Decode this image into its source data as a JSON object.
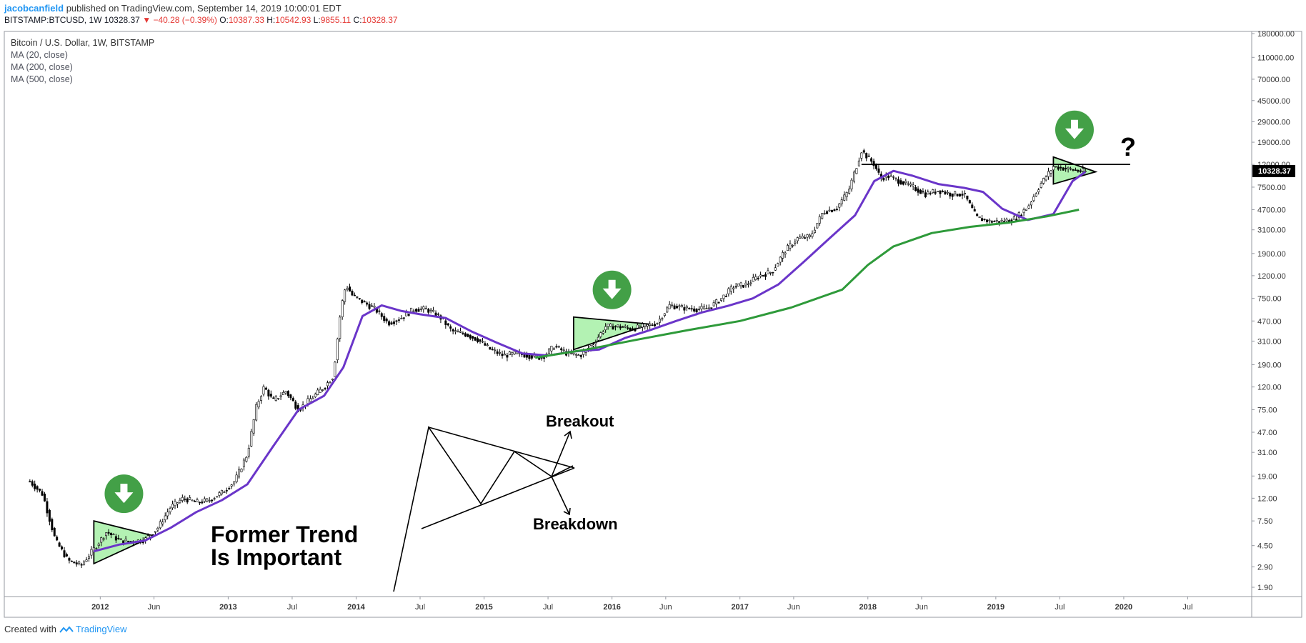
{
  "header": {
    "author": "jacobcanfield",
    "published_text": "published on TradingView.com, September 14, 2019 10:00:01 EDT",
    "symbol": "BITSTAMP:BTCUSD, 1W",
    "last": "10328.37",
    "change_arrow": "▼",
    "change": "−40.28 (−0.39%)",
    "o_label": "O:",
    "o": "10387.33",
    "h_label": "H:",
    "h": "10542.93",
    "l_label": "L:",
    "l": "9855.11",
    "c_label": "C:",
    "c": "10328.37"
  },
  "legend": {
    "title": "Bitcoin / U.S. Dollar, 1W, BITSTAMP",
    "ma1": "MA (20, close)",
    "ma2": "MA (200, close)",
    "ma3": "MA (500, close)"
  },
  "footer": {
    "created_with": "Created with",
    "brand": "TradingView"
  },
  "annotations": {
    "trend_line1": "Former Trend",
    "trend_line2": "Is Important",
    "breakout": "Breakout",
    "breakdown": "Breakdown",
    "question": "?"
  },
  "colors": {
    "ma20": "#6a35c9",
    "ma200": "#2e9a3a",
    "triangle_fill": "#a6f0a6",
    "arrow_circle": "#43a047",
    "price_label_bg": "#000000",
    "down": "#e53935",
    "brand": "#2196f3"
  },
  "chart_data": {
    "type": "line",
    "title": "Bitcoin / U.S. Dollar, 1W, BITSTAMP",
    "scale": "log",
    "y_ticks": [
      "180000.00",
      "110000.00",
      "70000.00",
      "45000.00",
      "29000.00",
      "19000.00",
      "12000.00",
      "7500.00",
      "4700.00",
      "3100.00",
      "1900.00",
      "1200.00",
      "750.00",
      "470.00",
      "310.00",
      "190.00",
      "120.00",
      "75.00",
      "47.00",
      "31.00",
      "19.00",
      "12.00",
      "7.50",
      "4.50",
      "2.90",
      "1.90"
    ],
    "x_ticks": [
      "2012",
      "Jun",
      "2013",
      "Jul",
      "2014",
      "Jul",
      "2015",
      "Jul",
      "2016",
      "Jun",
      "2017",
      "Jun",
      "2018",
      "Jun",
      "2019",
      "Jul",
      "2020",
      "Jul"
    ],
    "x_tick_dates": [
      2012.0,
      2012.42,
      2013.0,
      2013.5,
      2014.0,
      2014.5,
      2015.0,
      2015.5,
      2016.0,
      2016.42,
      2017.0,
      2017.42,
      2018.0,
      2018.42,
      2019.0,
      2019.5,
      2020.0,
      2020.5
    ],
    "last_price_label": "10328.37",
    "last_price": 10328.37,
    "resistance_level": 12000,
    "series": [
      {
        "name": "BTCUSD",
        "x": [
          2011.45,
          2011.55,
          2011.65,
          2011.75,
          2011.85,
          2011.95,
          2012.05,
          2012.15,
          2012.25,
          2012.35,
          2012.45,
          2012.55,
          2012.65,
          2012.75,
          2012.85,
          2012.95,
          2013.05,
          2013.15,
          2013.22,
          2013.28,
          2013.35,
          2013.45,
          2013.55,
          2013.65,
          2013.75,
          2013.82,
          2013.88,
          2013.92,
          2013.97,
          2014.05,
          2014.15,
          2014.25,
          2014.35,
          2014.45,
          2014.55,
          2014.65,
          2014.75,
          2014.85,
          2014.95,
          2015.05,
          2015.15,
          2015.25,
          2015.35,
          2015.45,
          2015.55,
          2015.65,
          2015.75,
          2015.85,
          2015.95,
          2016.05,
          2016.15,
          2016.25,
          2016.35,
          2016.45,
          2016.55,
          2016.65,
          2016.75,
          2016.85,
          2016.95,
          2017.05,
          2017.15,
          2017.25,
          2017.35,
          2017.45,
          2017.55,
          2017.65,
          2017.75,
          2017.85,
          2017.95,
          2018.05,
          2018.1,
          2018.15,
          2018.25,
          2018.35,
          2018.45,
          2018.55,
          2018.65,
          2018.75,
          2018.85,
          2018.95,
          2019.05,
          2019.15,
          2019.25,
          2019.35,
          2019.45,
          2019.55,
          2019.65,
          2019.7
        ],
        "values": [
          17,
          13,
          5,
          3.3,
          3.0,
          4.2,
          6.0,
          5.0,
          4.9,
          5.1,
          6.5,
          10,
          12,
          11,
          11.5,
          13.5,
          17,
          30,
          80,
          120,
          90,
          110,
          75,
          95,
          120,
          150,
          600,
          1000,
          800,
          700,
          600,
          450,
          500,
          600,
          600,
          520,
          380,
          360,
          320,
          260,
          230,
          240,
          230,
          220,
          280,
          240,
          230,
          290,
          420,
          420,
          400,
          420,
          450,
          650,
          620,
          600,
          610,
          740,
          960,
          1000,
          1200,
          1300,
          2000,
          2600,
          2700,
          4500,
          4800,
          7000,
          16000,
          12000,
          9000,
          9500,
          8500,
          7500,
          6500,
          7000,
          6500,
          6500,
          4000,
          3700,
          3700,
          3900,
          5000,
          8000,
          11500,
          11000,
          10500,
          10328
        ]
      },
      {
        "name": "MA (20, close)",
        "x": [
          2011.95,
          2012.15,
          2012.35,
          2012.55,
          2012.75,
          2012.95,
          2013.15,
          2013.35,
          2013.55,
          2013.75,
          2013.9,
          2014.05,
          2014.2,
          2014.35,
          2014.5,
          2014.7,
          2014.9,
          2015.1,
          2015.3,
          2015.5,
          2015.7,
          2015.9,
          2016.1,
          2016.3,
          2016.5,
          2016.7,
          2016.9,
          2017.1,
          2017.3,
          2017.5,
          2017.7,
          2017.9,
          2018.05,
          2018.2,
          2018.35,
          2018.55,
          2018.75,
          2018.9,
          2019.05,
          2019.25,
          2019.45,
          2019.6,
          2019.7
        ],
        "values": [
          4.0,
          4.6,
          5.0,
          6.5,
          9.0,
          11.5,
          16,
          35,
          75,
          100,
          180,
          520,
          650,
          580,
          540,
          500,
          380,
          300,
          240,
          230,
          250,
          260,
          330,
          390,
          470,
          560,
          640,
          750,
          1000,
          1600,
          2600,
          4200,
          8500,
          10500,
          9500,
          8000,
          7400,
          6800,
          4800,
          3800,
          4300,
          8500,
          10300
        ]
      },
      {
        "name": "MA (200, close)",
        "x": [
          2015.4,
          2015.8,
          2016.2,
          2016.6,
          2017.0,
          2017.4,
          2017.8,
          2018.0,
          2018.2,
          2018.5,
          2018.8,
          2019.1,
          2019.4,
          2019.65
        ],
        "values": [
          220,
          260,
          320,
          390,
          470,
          620,
          900,
          1500,
          2200,
          2900,
          3300,
          3600,
          4100,
          4700
        ]
      }
    ],
    "patterns": [
      {
        "type": "symmetrical-triangle",
        "start": 2011.95,
        "end": 2012.42,
        "top": 7.5,
        "bottom": 3.1,
        "apex": 5.5
      },
      {
        "type": "symmetrical-triangle",
        "start": 2015.7,
        "end": 2016.3,
        "top": 510,
        "bottom": 260,
        "apex": 440
      },
      {
        "type": "symmetrical-triangle",
        "start": 2019.45,
        "end": 2019.78,
        "top": 14000,
        "bottom": 8000,
        "apex": 10300
      }
    ]
  }
}
